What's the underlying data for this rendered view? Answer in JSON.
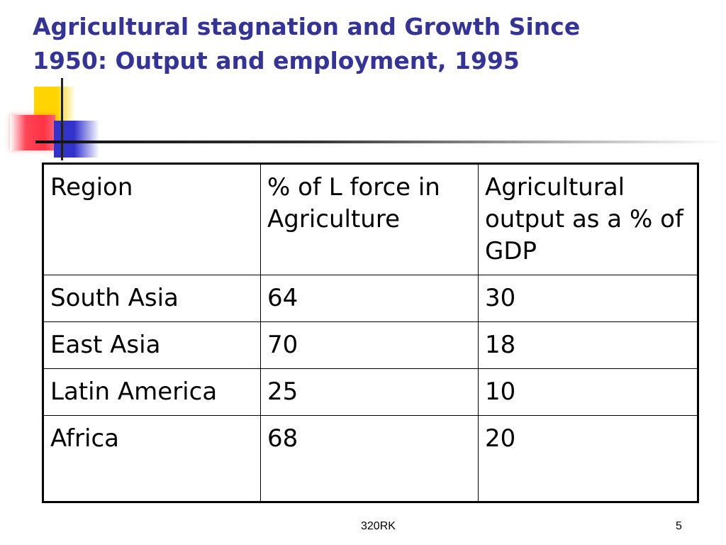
{
  "slide": {
    "title_line1": "Agricultural stagnation and Growth Since",
    "title_line2": "1950: Output and employment, 1995",
    "title_color": "#333399"
  },
  "table": {
    "headers": [
      "Region",
      "% of L force in Agriculture",
      "Agricultural output as a % of GDP"
    ],
    "rows": [
      [
        "South Asia",
        "64",
        "30"
      ],
      [
        "East Asia",
        "70",
        "18"
      ],
      [
        "Latin America",
        "25",
        "10"
      ],
      [
        "Africa",
        "68",
        "20"
      ]
    ]
  },
  "footer": {
    "center_text": "320RK",
    "page_number": "5"
  },
  "decoration": {
    "colors": {
      "yellow": "#ffd400",
      "red": "#ff3344",
      "blue": "#3333cc",
      "line": "#222222"
    }
  }
}
